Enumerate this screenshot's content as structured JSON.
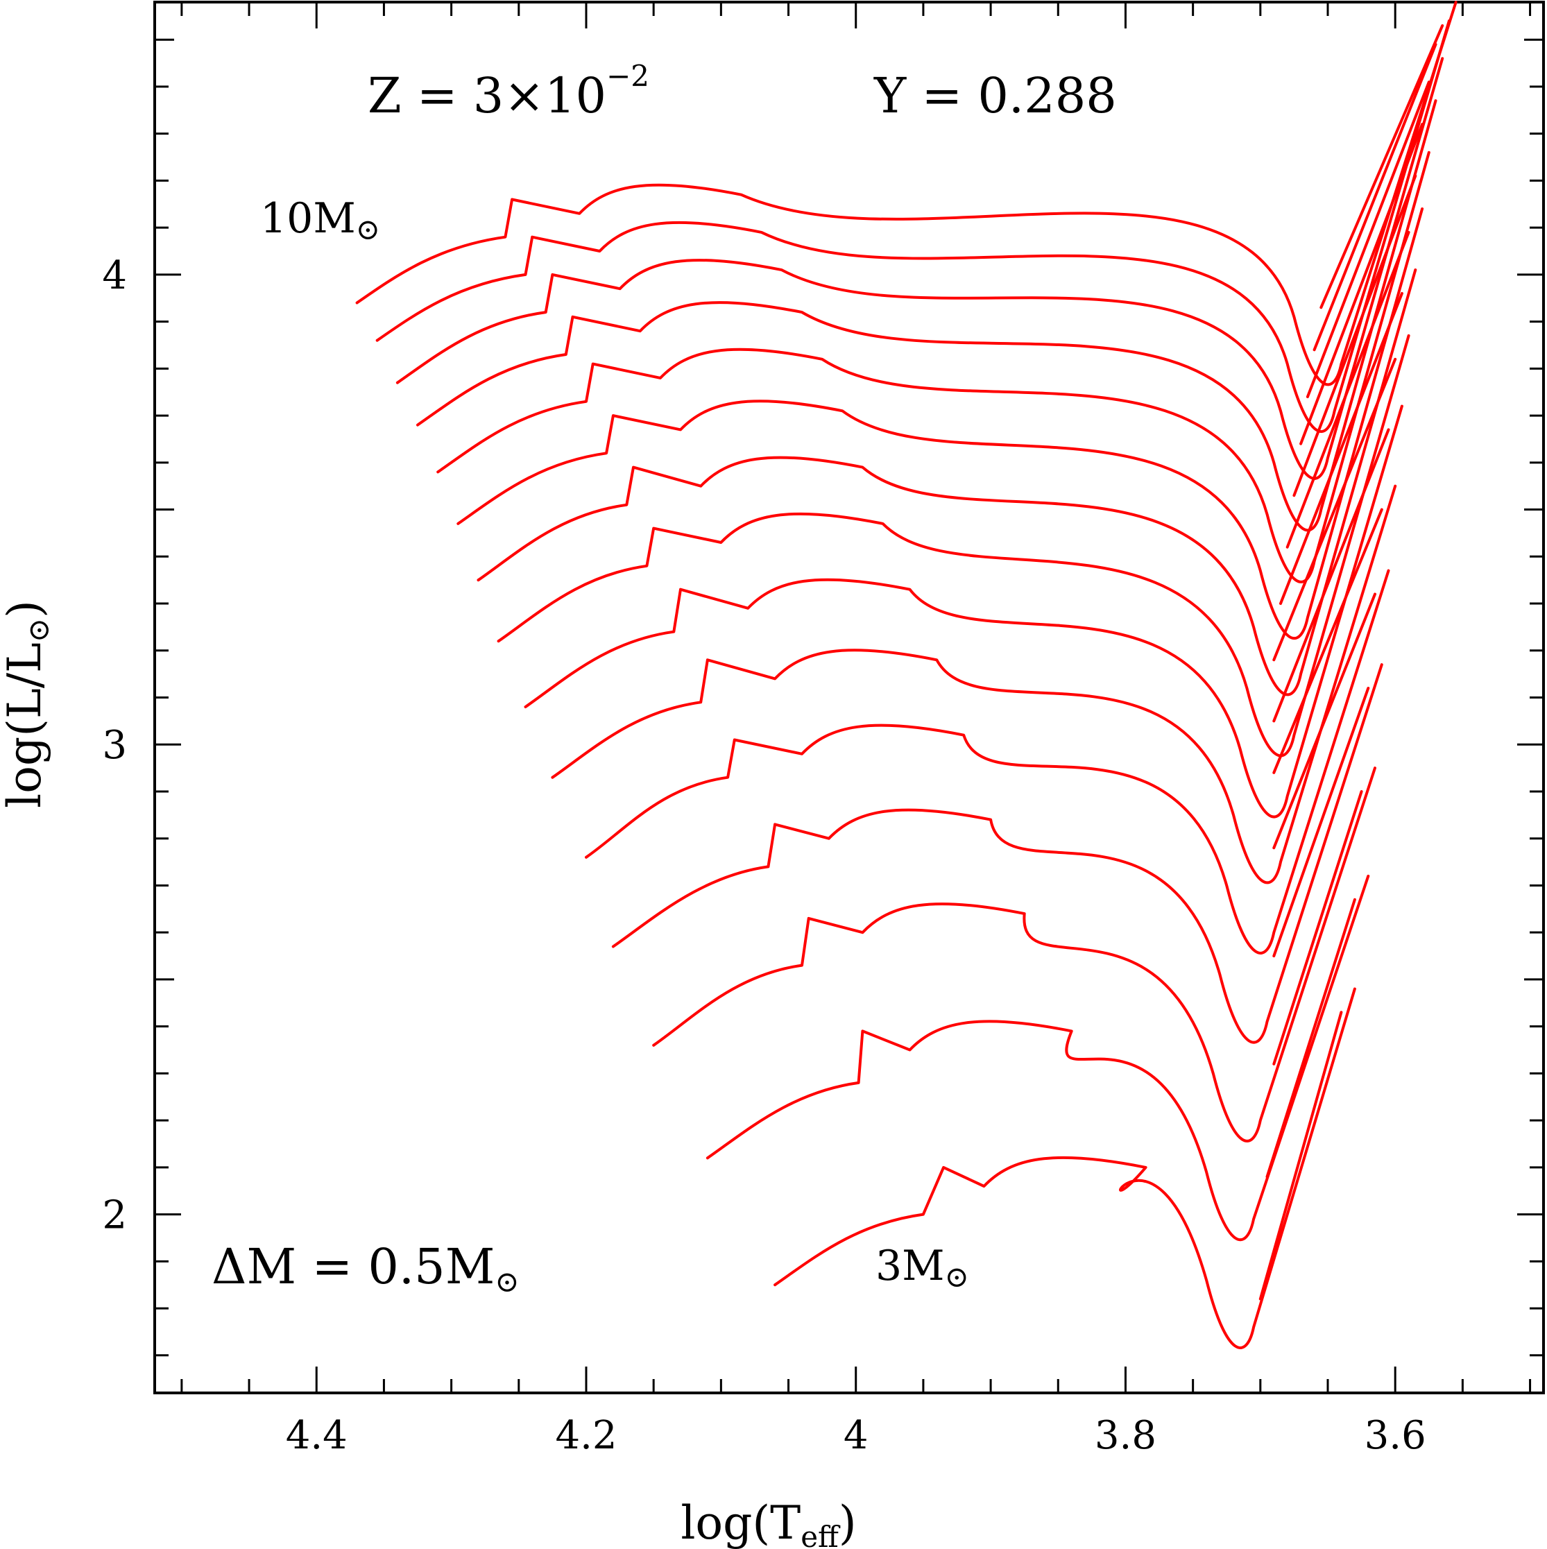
{
  "chart_data": {
    "type": "line",
    "xlabel": "log(T",
    "xlabel_sub": "eff",
    "xlabel_close": ")",
    "ylabel": "log(L/L",
    "ylabel_sub": "⊙",
    "ylabel_close": ")",
    "xlim": [
      4.52,
      3.49
    ],
    "ylim": [
      1.62,
      4.58
    ],
    "x_ticks": [
      4.4,
      4.2,
      4.0,
      3.8,
      3.6
    ],
    "x_tick_labels": [
      "4.4",
      "4.2",
      "4",
      "3.8",
      "3.6"
    ],
    "y_ticks": [
      2,
      3,
      4
    ],
    "y_tick_labels": [
      "2",
      "3",
      "4"
    ],
    "grid": false,
    "line_color": "#ff0000",
    "annotations": {
      "top_z": "Z = 3×10",
      "top_z_exp": "−2",
      "top_y": "Y = 0.288",
      "delta_m": "ΔM = 0.5M",
      "label_high": "10M",
      "label_low": "3M",
      "solar": "⊙"
    },
    "series": [
      {
        "mass": 3.0,
        "zams_x": 4.06,
        "zams_y": 1.85,
        "hook_x": 3.95,
        "hook_y": 2.0,
        "tip_x": 3.945,
        "tip_y": 2.13,
        "sg_end_x": 3.905,
        "sg_end_y": 2.12,
        "base_x": 3.72,
        "base_y": 1.71,
        "rgb_top_x": 3.63,
        "rgb_top_y": 2.48,
        "rgb_bot_x": 3.7,
        "rgb_bot_y": 1.82
      },
      {
        "mass": 3.5,
        "zams_x": 4.11,
        "zams_y": 2.12,
        "hook_x": 3.998,
        "hook_y": 2.28,
        "tip_x": 4.005,
        "tip_y": 2.42,
        "sg_end_x": 3.96,
        "sg_end_y": 2.41,
        "base_x": 3.72,
        "base_y": 1.94,
        "rgb_top_x": 3.62,
        "rgb_top_y": 2.72,
        "rgb_bot_x": 3.695,
        "rgb_bot_y": 2.08
      },
      {
        "mass": 4.0,
        "zams_x": 4.15,
        "zams_y": 2.36,
        "hook_x": 4.04,
        "hook_y": 2.53,
        "tip_x": 4.045,
        "tip_y": 2.66,
        "sg_end_x": 3.995,
        "sg_end_y": 2.66,
        "base_x": 3.715,
        "base_y": 2.15,
        "rgb_top_x": 3.615,
        "rgb_top_y": 2.95,
        "rgb_bot_x": 3.69,
        "rgb_bot_y": 2.32
      },
      {
        "mass": 4.5,
        "zams_x": 4.18,
        "zams_y": 2.57,
        "hook_x": 4.065,
        "hook_y": 2.74,
        "tip_x": 4.07,
        "tip_y": 2.86,
        "sg_end_x": 4.02,
        "sg_end_y": 2.86,
        "base_x": 3.71,
        "base_y": 2.36,
        "rgb_top_x": 3.61,
        "rgb_top_y": 3.17,
        "rgb_bot_x": 3.69,
        "rgb_bot_y": 2.55
      },
      {
        "mass": 5.0,
        "zams_x": 4.2,
        "zams_y": 2.76,
        "hook_x": 4.095,
        "hook_y": 2.93,
        "tip_x": 4.1,
        "tip_y": 3.04,
        "sg_end_x": 4.04,
        "sg_end_y": 3.04,
        "base_x": 3.705,
        "base_y": 2.55,
        "rgb_top_x": 3.605,
        "rgb_top_y": 3.37,
        "rgb_bot_x": 3.69,
        "rgb_bot_y": 2.78
      },
      {
        "mass": 5.5,
        "zams_x": 4.225,
        "zams_y": 2.93,
        "hook_x": 4.115,
        "hook_y": 3.09,
        "tip_x": 4.12,
        "tip_y": 3.21,
        "sg_end_x": 4.06,
        "sg_end_y": 3.2,
        "base_x": 3.7,
        "base_y": 2.7,
        "rgb_top_x": 3.6,
        "rgb_top_y": 3.55,
        "rgb_bot_x": 3.69,
        "rgb_bot_y": 2.94
      },
      {
        "mass": 6.0,
        "zams_x": 4.245,
        "zams_y": 3.08,
        "hook_x": 4.135,
        "hook_y": 3.24,
        "tip_x": 4.14,
        "tip_y": 3.36,
        "sg_end_x": 4.08,
        "sg_end_y": 3.35,
        "base_x": 3.695,
        "base_y": 2.84,
        "rgb_top_x": 3.595,
        "rgb_top_y": 3.72,
        "rgb_bot_x": 3.69,
        "rgb_bot_y": 3.05
      },
      {
        "mass": 6.5,
        "zams_x": 4.265,
        "zams_y": 3.22,
        "hook_x": 4.155,
        "hook_y": 3.38,
        "tip_x": 4.16,
        "tip_y": 3.49,
        "sg_end_x": 4.1,
        "sg_end_y": 3.49,
        "base_x": 3.69,
        "base_y": 2.97,
        "rgb_top_x": 3.59,
        "rgb_top_y": 3.87,
        "rgb_bot_x": 3.69,
        "rgb_bot_y": 3.18
      },
      {
        "mass": 7.0,
        "zams_x": 4.28,
        "zams_y": 3.35,
        "hook_x": 4.17,
        "hook_y": 3.51,
        "tip_x": 4.175,
        "tip_y": 3.62,
        "sg_end_x": 4.115,
        "sg_end_y": 3.61,
        "base_x": 3.685,
        "base_y": 3.1,
        "rgb_top_x": 3.585,
        "rgb_top_y": 4.01,
        "rgb_bot_x": 3.685,
        "rgb_bot_y": 3.3
      },
      {
        "mass": 7.5,
        "zams_x": 4.295,
        "zams_y": 3.47,
        "hook_x": 4.185,
        "hook_y": 3.62,
        "tip_x": 4.19,
        "tip_y": 3.73,
        "sg_end_x": 4.13,
        "sg_end_y": 3.73,
        "base_x": 3.68,
        "base_y": 3.22,
        "rgb_top_x": 3.58,
        "rgb_top_y": 4.14,
        "rgb_bot_x": 3.68,
        "rgb_bot_y": 3.42
      },
      {
        "mass": 8.0,
        "zams_x": 4.31,
        "zams_y": 3.58,
        "hook_x": 4.2,
        "hook_y": 3.73,
        "tip_x": 4.205,
        "tip_y": 3.84,
        "sg_end_x": 4.145,
        "sg_end_y": 3.84,
        "base_x": 3.675,
        "base_y": 3.34,
        "rgb_top_x": 3.575,
        "rgb_top_y": 4.26,
        "rgb_bot_x": 3.675,
        "rgb_bot_y": 3.53
      },
      {
        "mass": 8.5,
        "zams_x": 4.325,
        "zams_y": 3.68,
        "hook_x": 4.215,
        "hook_y": 3.83,
        "tip_x": 4.22,
        "tip_y": 3.94,
        "sg_end_x": 4.16,
        "sg_end_y": 3.94,
        "base_x": 3.67,
        "base_y": 3.45,
        "rgb_top_x": 3.57,
        "rgb_top_y": 4.37,
        "rgb_bot_x": 3.67,
        "rgb_bot_y": 3.64
      },
      {
        "mass": 9.0,
        "zams_x": 4.34,
        "zams_y": 3.77,
        "hook_x": 4.23,
        "hook_y": 3.92,
        "tip_x": 4.235,
        "tip_y": 4.03,
        "sg_end_x": 4.175,
        "sg_end_y": 4.03,
        "base_x": 3.665,
        "base_y": 3.56,
        "rgb_top_x": 3.565,
        "rgb_top_y": 4.46,
        "rgb_bot_x": 3.665,
        "rgb_bot_y": 3.74
      },
      {
        "mass": 9.5,
        "zams_x": 4.355,
        "zams_y": 3.86,
        "hook_x": 4.245,
        "hook_y": 4.0,
        "tip_x": 4.25,
        "tip_y": 4.11,
        "sg_end_x": 4.19,
        "sg_end_y": 4.11,
        "base_x": 3.66,
        "base_y": 3.66,
        "rgb_top_x": 3.56,
        "rgb_top_y": 4.54,
        "rgb_bot_x": 3.66,
        "rgb_bot_y": 3.84
      },
      {
        "mass": 10.0,
        "zams_x": 4.37,
        "zams_y": 3.94,
        "hook_x": 4.26,
        "hook_y": 4.08,
        "tip_x": 4.265,
        "tip_y": 4.19,
        "sg_end_x": 4.205,
        "sg_end_y": 4.19,
        "base_x": 3.655,
        "base_y": 3.76,
        "rgb_top_x": 3.555,
        "rgb_top_y": 4.58,
        "rgb_bot_x": 3.655,
        "rgb_bot_y": 3.93
      }
    ]
  }
}
